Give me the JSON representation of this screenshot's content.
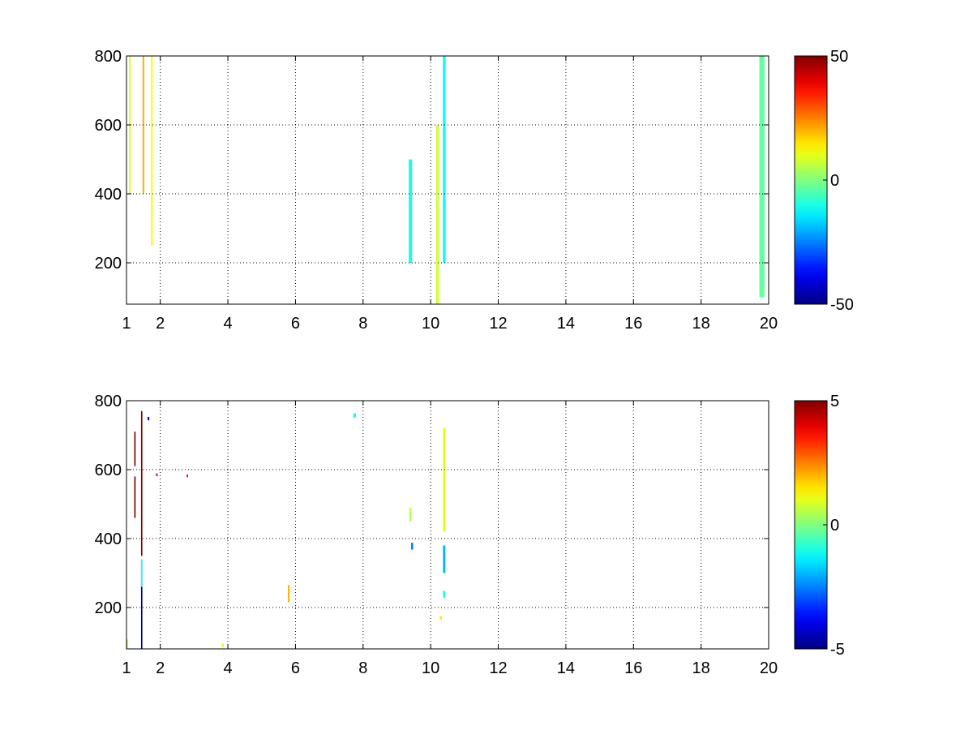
{
  "chart_data": [
    {
      "type": "heatmap",
      "title": "",
      "xlabel": "",
      "ylabel": "",
      "xlim": [
        1,
        20
      ],
      "ylim": [
        80,
        800
      ],
      "x_ticks": [
        1,
        2,
        4,
        6,
        8,
        10,
        12,
        14,
        16,
        18,
        20
      ],
      "y_ticks": [
        200,
        400,
        600,
        800
      ],
      "grid": true,
      "colormap": "jet",
      "color_range": [
        -50,
        50
      ],
      "colorbar_ticks": [
        50,
        0,
        -50
      ],
      "colorbar_position": "right",
      "background_color": "#ffffff",
      "description_of_cells": "sparse pixel field; dense columns near x=1-2 and x~10.4, rows of cells clustered near integer x values",
      "cells": [
        {
          "x": 1.1,
          "y": 750,
          "w": 0.05,
          "h": 700,
          "value": 10
        },
        {
          "x": 1.5,
          "y": 700,
          "w": 0.05,
          "h": 600,
          "value": 20
        },
        {
          "x": 1.75,
          "y": 600,
          "w": 0.05,
          "h": 700,
          "value": 12
        },
        {
          "x": 10.2,
          "y": 300,
          "w": 0.08,
          "h": 600,
          "value": 8
        },
        {
          "x": 10.4,
          "y": 500,
          "w": 0.08,
          "h": 600,
          "value": -12
        },
        {
          "x": 9.4,
          "y": 350,
          "w": 0.1,
          "h": 300,
          "value": -10
        },
        {
          "x": 19.8,
          "y": 450,
          "w": 0.15,
          "h": 700,
          "value": -3
        }
      ]
    },
    {
      "type": "heatmap",
      "title": "",
      "xlabel": "",
      "ylabel": "",
      "xlim": [
        1,
        20
      ],
      "ylim": [
        80,
        800
      ],
      "x_ticks": [
        1,
        2,
        4,
        6,
        8,
        10,
        12,
        14,
        16,
        18,
        20
      ],
      "y_ticks": [
        200,
        400,
        600,
        800
      ],
      "grid": true,
      "colormap": "jet",
      "color_range": [
        -5,
        5
      ],
      "colorbar_ticks": [
        5,
        0,
        -5
      ],
      "colorbar_position": "right",
      "background_color": "#ffffff",
      "cells": [
        {
          "x": 1.25,
          "y": 660,
          "w": 0.04,
          "h": 100,
          "value": 5
        },
        {
          "x": 1.25,
          "y": 520,
          "w": 0.04,
          "h": 120,
          "value": 5
        },
        {
          "x": 1.45,
          "y": 560,
          "w": 0.04,
          "h": 420,
          "value": 5
        },
        {
          "x": 1.45,
          "y": 210,
          "w": 0.04,
          "h": 260,
          "value": -5
        },
        {
          "x": 1.45,
          "y": 300,
          "w": 0.04,
          "h": 80,
          "value": -1
        },
        {
          "x": 1.65,
          "y": 748,
          "w": 0.05,
          "h": 10,
          "value": -4
        },
        {
          "x": 1.9,
          "y": 585,
          "w": 0.04,
          "h": 8,
          "value": 5
        },
        {
          "x": 2.8,
          "y": 582,
          "w": 0.04,
          "h": 8,
          "value": 4
        },
        {
          "x": 5.8,
          "y": 240,
          "w": 0.05,
          "h": 50,
          "value": 2
        },
        {
          "x": 7.75,
          "y": 757,
          "w": 0.08,
          "h": 12,
          "value": -1
        },
        {
          "x": 9.4,
          "y": 470,
          "w": 0.06,
          "h": 40,
          "value": 0.5
        },
        {
          "x": 9.45,
          "y": 378,
          "w": 0.06,
          "h": 20,
          "value": -2.5
        },
        {
          "x": 10.4,
          "y": 570,
          "w": 0.07,
          "h": 300,
          "value": 1
        },
        {
          "x": 10.4,
          "y": 340,
          "w": 0.07,
          "h": 80,
          "value": -2
        },
        {
          "x": 10.4,
          "y": 238,
          "w": 0.07,
          "h": 20,
          "value": -1
        },
        {
          "x": 10.3,
          "y": 170,
          "w": 0.06,
          "h": 10,
          "value": 1.5
        },
        {
          "x": 1.02,
          "y": 95,
          "w": 0.05,
          "h": 25,
          "value": 0.5
        },
        {
          "x": 3.85,
          "y": 90,
          "w": 0.06,
          "h": 10,
          "value": 0.8
        }
      ]
    }
  ]
}
